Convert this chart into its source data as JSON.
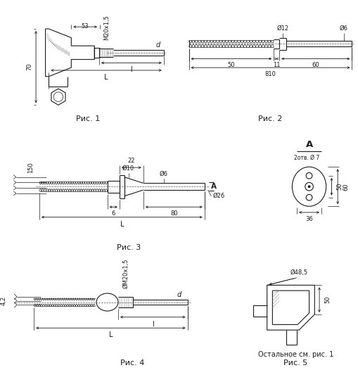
{
  "fig_width": 5.1,
  "fig_height": 5.43,
  "dpi": 100,
  "bg_color": "#ffffff",
  "line_color": "#1a1a1a",
  "captions": [
    "Рис. 1",
    "Рис. 2",
    "Рис. 3",
    "Рис. 4",
    "Рис. 5"
  ],
  "caption_fontsize": 8,
  "dim_fontsize": 6.0,
  "label_fontsize": 7.5,
  "note_text": "Остальное см. рис. 1"
}
